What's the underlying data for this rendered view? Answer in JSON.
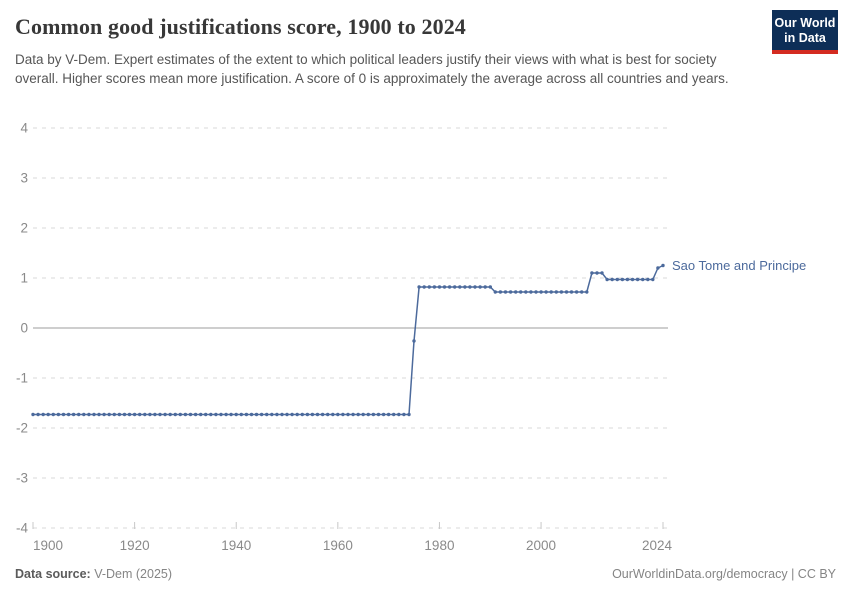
{
  "header": {
    "title": "Common good justifications score, 1900 to 2024",
    "subtitle": "Data by V-Dem. Expert estimates of the extent to which political leaders justify their views with what is best for society overall. Higher scores mean more justification. A score of 0 is approximately the average across all countries and years.",
    "logo": {
      "line1": "Our World",
      "line2": "in Data",
      "bg_color": "#0d2e57",
      "accent_color": "#d42b21"
    }
  },
  "chart_data": {
    "type": "line",
    "title": "Common good justifications score, 1900 to 2024",
    "xlabel": "",
    "ylabel": "",
    "xlim": [
      1900,
      2024
    ],
    "ylim": [
      -4,
      4
    ],
    "x_ticks": [
      1900,
      1920,
      1940,
      1960,
      1980,
      2000,
      2024
    ],
    "y_ticks": [
      4,
      3,
      2,
      1,
      0,
      -1,
      -2,
      -3,
      -4
    ],
    "grid": "horizontal-dashed",
    "zero_line": true,
    "grid_color": "#d8d8d8",
    "zero_line_color": "#9c9c9c",
    "legend_position": "end-of-line-label",
    "series": [
      {
        "name": "Sao Tome and Principe",
        "color": "#4c6a9c",
        "marker": "circle",
        "points_every_year": true,
        "segments": [
          {
            "from": 1900,
            "to": 1974,
            "value": -1.73
          },
          {
            "from": 1975,
            "to": 1975,
            "value": -0.26
          },
          {
            "from": 1976,
            "to": 1990,
            "value": 0.82
          },
          {
            "from": 1991,
            "to": 2009,
            "value": 0.72
          },
          {
            "from": 2010,
            "to": 2012,
            "value": 1.1
          },
          {
            "from": 2013,
            "to": 2022,
            "value": 0.97
          },
          {
            "from": 2023,
            "to": 2023,
            "value": 1.2
          },
          {
            "from": 2024,
            "to": 2024,
            "value": 1.25
          }
        ]
      }
    ]
  },
  "footer": {
    "source_label": "Data source:",
    "source_value": "V-Dem (2025)",
    "credit": "OurWorldinData.org/democracy | CC BY"
  }
}
